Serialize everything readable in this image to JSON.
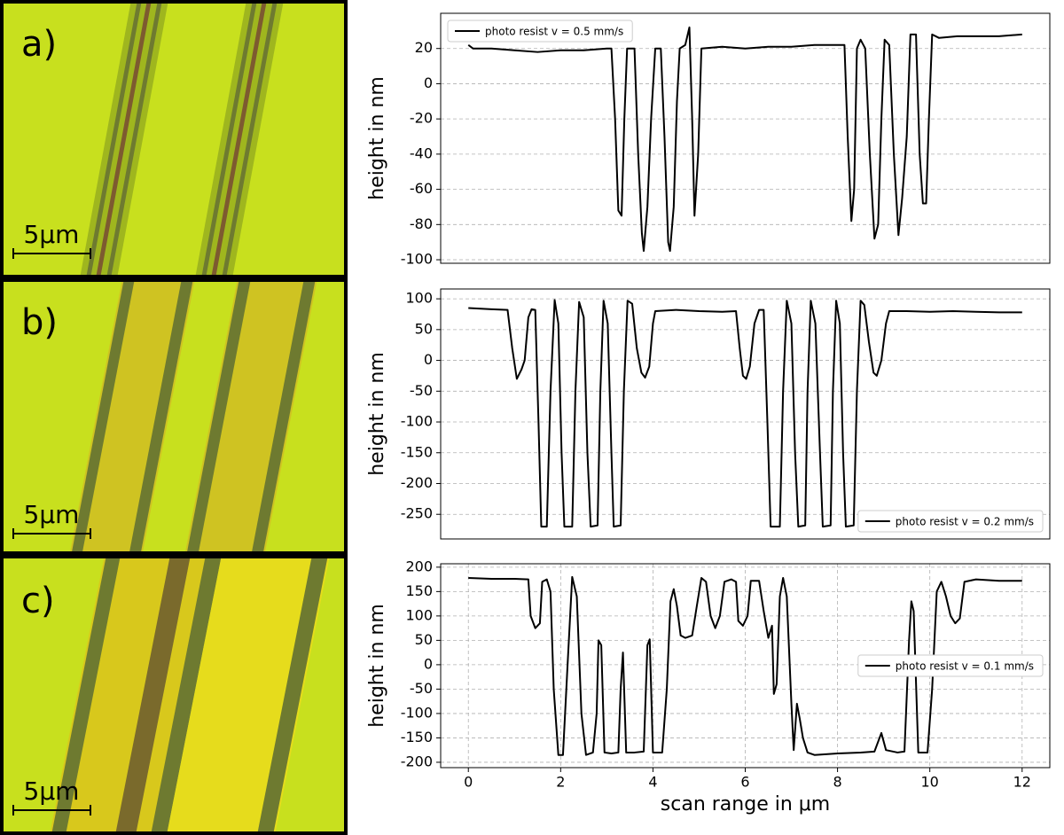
{
  "chart_data": [
    {
      "type": "line",
      "panel_label": "a)",
      "scale_bar_label": "5µm",
      "ylabel": "height in nm",
      "xlim": [
        -0.6,
        12.6
      ],
      "ylim": [
        -102,
        40
      ],
      "yticks": [
        -100,
        -80,
        -60,
        -40,
        -20,
        0,
        20
      ],
      "grid": "y",
      "legend": "upper left",
      "x": [
        0,
        0.1,
        0.5,
        1,
        1.5,
        2,
        2.5,
        3,
        3.1,
        3.18,
        3.25,
        3.32,
        3.38,
        3.44,
        3.6,
        3.68,
        3.76,
        3.8,
        3.88,
        3.96,
        4.05,
        4.17,
        4.25,
        4.33,
        4.37,
        4.45,
        4.52,
        4.58,
        4.7,
        4.79,
        4.85,
        4.9,
        4.98,
        5.05,
        5.5,
        6,
        6.5,
        7,
        7.5,
        8,
        8.15,
        8.22,
        8.3,
        8.36,
        8.42,
        8.5,
        8.6,
        8.7,
        8.8,
        8.88,
        8.95,
        9.02,
        9.12,
        9.22,
        9.32,
        9.4,
        9.5,
        9.58,
        9.7,
        9.78,
        9.85,
        9.92,
        9.98,
        10.05,
        10.2,
        10.6,
        11,
        11.5,
        12
      ],
      "series": [
        {
          "name": "photo resist v = 0.5 mm/s",
          "color": "#000000",
          "values": [
            22,
            20,
            20,
            19,
            18,
            19,
            19,
            20,
            20,
            -20,
            -72,
            -75,
            -20,
            20,
            20,
            -40,
            -85,
            -95,
            -70,
            -20,
            20,
            20,
            -30,
            -90,
            -95,
            -70,
            -10,
            20,
            22,
            32,
            -20,
            -75,
            -40,
            20,
            21,
            20,
            21,
            21,
            22,
            22,
            22,
            -30,
            -78,
            -60,
            20,
            25,
            20,
            -40,
            -88,
            -80,
            -20,
            25,
            22,
            -40,
            -86,
            -65,
            -30,
            28,
            28,
            -40,
            -68,
            -68,
            -20,
            28,
            26,
            27,
            27,
            27,
            28
          ]
        }
      ]
    },
    {
      "type": "line",
      "panel_label": "b)",
      "scale_bar_label": "5µm",
      "ylabel": "height in nm",
      "xlim": [
        -0.6,
        12.6
      ],
      "ylim": [
        -290,
        116
      ],
      "yticks": [
        -250,
        -200,
        -150,
        -100,
        -50,
        0,
        50,
        100
      ],
      "grid": "y",
      "legend": "lower right",
      "x": [
        0,
        0.5,
        0.85,
        0.95,
        1.05,
        1.15,
        1.22,
        1.3,
        1.37,
        1.45,
        1.52,
        1.58,
        1.7,
        1.78,
        1.87,
        1.95,
        2.02,
        2.08,
        2.25,
        2.32,
        2.4,
        2.5,
        2.58,
        2.65,
        2.8,
        2.86,
        2.93,
        3.02,
        3.1,
        3.15,
        3.3,
        3.37,
        3.45,
        3.55,
        3.65,
        3.75,
        3.83,
        3.92,
        4.0,
        4.05,
        4.5,
        5,
        5.5,
        5.8,
        5.88,
        5.95,
        6.02,
        6.1,
        6.2,
        6.3,
        6.4,
        6.48,
        6.55,
        6.75,
        6.82,
        6.9,
        7.0,
        7.08,
        7.15,
        7.3,
        7.35,
        7.42,
        7.52,
        7.62,
        7.68,
        7.85,
        7.9,
        7.97,
        8.05,
        8.12,
        8.18,
        8.35,
        8.42,
        8.5,
        8.58,
        8.68,
        8.78,
        8.85,
        8.95,
        9.05,
        9.12,
        9.5,
        10,
        10.5,
        11,
        11.5,
        12
      ],
      "series": [
        {
          "name": "photo resist v = 0.2 mm/s",
          "color": "#000000",
          "values": [
            85,
            83,
            82,
            20,
            -30,
            -15,
            0,
            70,
            83,
            82,
            -100,
            -270,
            -270,
            -50,
            98,
            60,
            -150,
            -270,
            -270,
            -50,
            95,
            70,
            -150,
            -270,
            -268,
            -50,
            97,
            60,
            -150,
            -270,
            -268,
            -50,
            97,
            92,
            20,
            -20,
            -28,
            -10,
            60,
            80,
            82,
            80,
            79,
            80,
            20,
            -25,
            -30,
            -10,
            60,
            82,
            82,
            -100,
            -270,
            -270,
            -50,
            97,
            60,
            -150,
            -270,
            -268,
            -50,
            97,
            60,
            -150,
            -270,
            -268,
            -50,
            97,
            60,
            -150,
            -270,
            -268,
            -50,
            97,
            90,
            30,
            -20,
            -25,
            0,
            60,
            80,
            80,
            79,
            80,
            79,
            78,
            78
          ]
        }
      ]
    },
    {
      "type": "line",
      "panel_label": "c)",
      "scale_bar_label": "5µm",
      "ylabel": "height in nm",
      "xlabel": "scan range in μm",
      "xlim": [
        -0.6,
        12.6
      ],
      "xticks": [
        0,
        2,
        4,
        6,
        8,
        10,
        12
      ],
      "ylim": [
        -211,
        207
      ],
      "yticks": [
        -200,
        -150,
        -100,
        -50,
        0,
        50,
        100,
        150,
        200
      ],
      "grid": "both",
      "legend": "center right",
      "x": [
        0,
        0.5,
        1,
        1.3,
        1.35,
        1.45,
        1.55,
        1.6,
        1.7,
        1.78,
        1.85,
        1.95,
        2.05,
        2.15,
        2.25,
        2.35,
        2.45,
        2.55,
        2.7,
        2.78,
        2.82,
        2.88,
        2.95,
        3.1,
        3.25,
        3.3,
        3.35,
        3.42,
        3.6,
        3.8,
        3.88,
        3.93,
        4.0,
        4.2,
        4.3,
        4.38,
        4.45,
        4.52,
        4.6,
        4.7,
        4.85,
        4.95,
        5.05,
        5.15,
        5.25,
        5.35,
        5.45,
        5.55,
        5.7,
        5.8,
        5.85,
        5.95,
        6.05,
        6.12,
        6.3,
        6.4,
        6.5,
        6.58,
        6.62,
        6.68,
        6.75,
        6.82,
        6.9,
        7.0,
        7.05,
        7.12,
        7.18,
        7.25,
        7.35,
        7.5,
        8,
        8.5,
        8.8,
        8.95,
        9.05,
        9.3,
        9.45,
        9.55,
        9.6,
        9.65,
        9.75,
        9.95,
        10.05,
        10.15,
        10.25,
        10.35,
        10.45,
        10.55,
        10.65,
        10.75,
        11,
        11.5,
        12
      ],
      "series": [
        {
          "name": "photo resist v = 0.1 mm/s",
          "color": "#000000",
          "values": [
            178,
            176,
            176,
            175,
            100,
            75,
            85,
            170,
            175,
            150,
            -50,
            -185,
            -185,
            0,
            180,
            140,
            -100,
            -185,
            -180,
            -100,
            50,
            40,
            -180,
            -182,
            -180,
            -50,
            25,
            -180,
            -180,
            -178,
            40,
            52,
            -180,
            -180,
            -50,
            130,
            155,
            120,
            60,
            55,
            60,
            120,
            178,
            170,
            100,
            75,
            100,
            170,
            175,
            170,
            90,
            80,
            100,
            172,
            172,
            110,
            55,
            80,
            -60,
            -40,
            140,
            178,
            140,
            -80,
            -175,
            -80,
            -110,
            -150,
            -180,
            -185,
            -182,
            -180,
            -178,
            -140,
            -175,
            -180,
            -178,
            50,
            130,
            110,
            -180,
            -180,
            -50,
            150,
            170,
            140,
            100,
            85,
            95,
            170,
            175,
            172,
            172
          ]
        }
      ]
    }
  ]
}
